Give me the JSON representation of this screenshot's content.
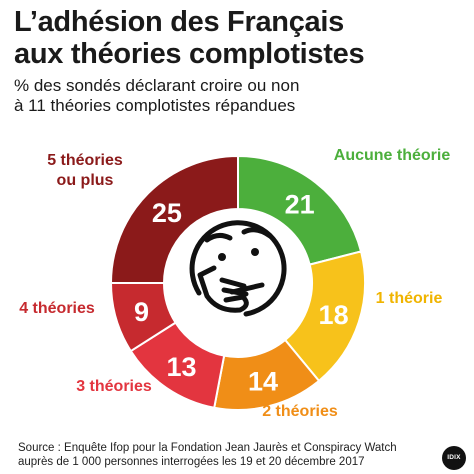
{
  "title_lines": [
    "L’adhésion des Français",
    "aux théories complotistes"
  ],
  "subtitle_lines": [
    "% des sondés déclarant croire ou non",
    "à 11 théories complotistes répandues"
  ],
  "source_lines": [
    "Source : Enquête Ifop pour la Fondation Jean Jaurès et Conspiracy Watch",
    "auprès de 1 000 personnes interrogées les 19 et 20 décembre 2017"
  ],
  "logo_text": "IDIX",
  "colors": {
    "text": "#1a1a1a",
    "center": "#ffffff",
    "icon_stroke": "#111111",
    "value_label": "#ffffff"
  },
  "icon": "thinking-face-icon",
  "chart_data": {
    "type": "pie",
    "variant": "donut",
    "title": "L’adhésion des Français aux théories complotistes",
    "subtitle": "% des sondés déclarant croire ou non à 11 théories complotistes répandues",
    "unit": "%",
    "categories": [
      "Aucune théorie",
      "1 théorie",
      "2 théories",
      "3 théories",
      "4 théories",
      "5 théories ou plus"
    ],
    "values": [
      21,
      18,
      14,
      13,
      9,
      25
    ],
    "slice_colors": [
      "#4caf3c",
      "#f7c21b",
      "#f08e17",
      "#e3353f",
      "#c62a2f",
      "#8b1a1a"
    ],
    "label_colors": [
      "#4caf3c",
      "#f0b400",
      "#f08e17",
      "#e3353f",
      "#c62a2f",
      "#8b1a1a"
    ],
    "label_lines": [
      [
        "Aucune théorie"
      ],
      [
        "1 théorie"
      ],
      [
        "2 théories"
      ],
      [
        "3 théories"
      ],
      [
        "4 théories"
      ],
      [
        "5 théories",
        "ou plus"
      ]
    ]
  }
}
